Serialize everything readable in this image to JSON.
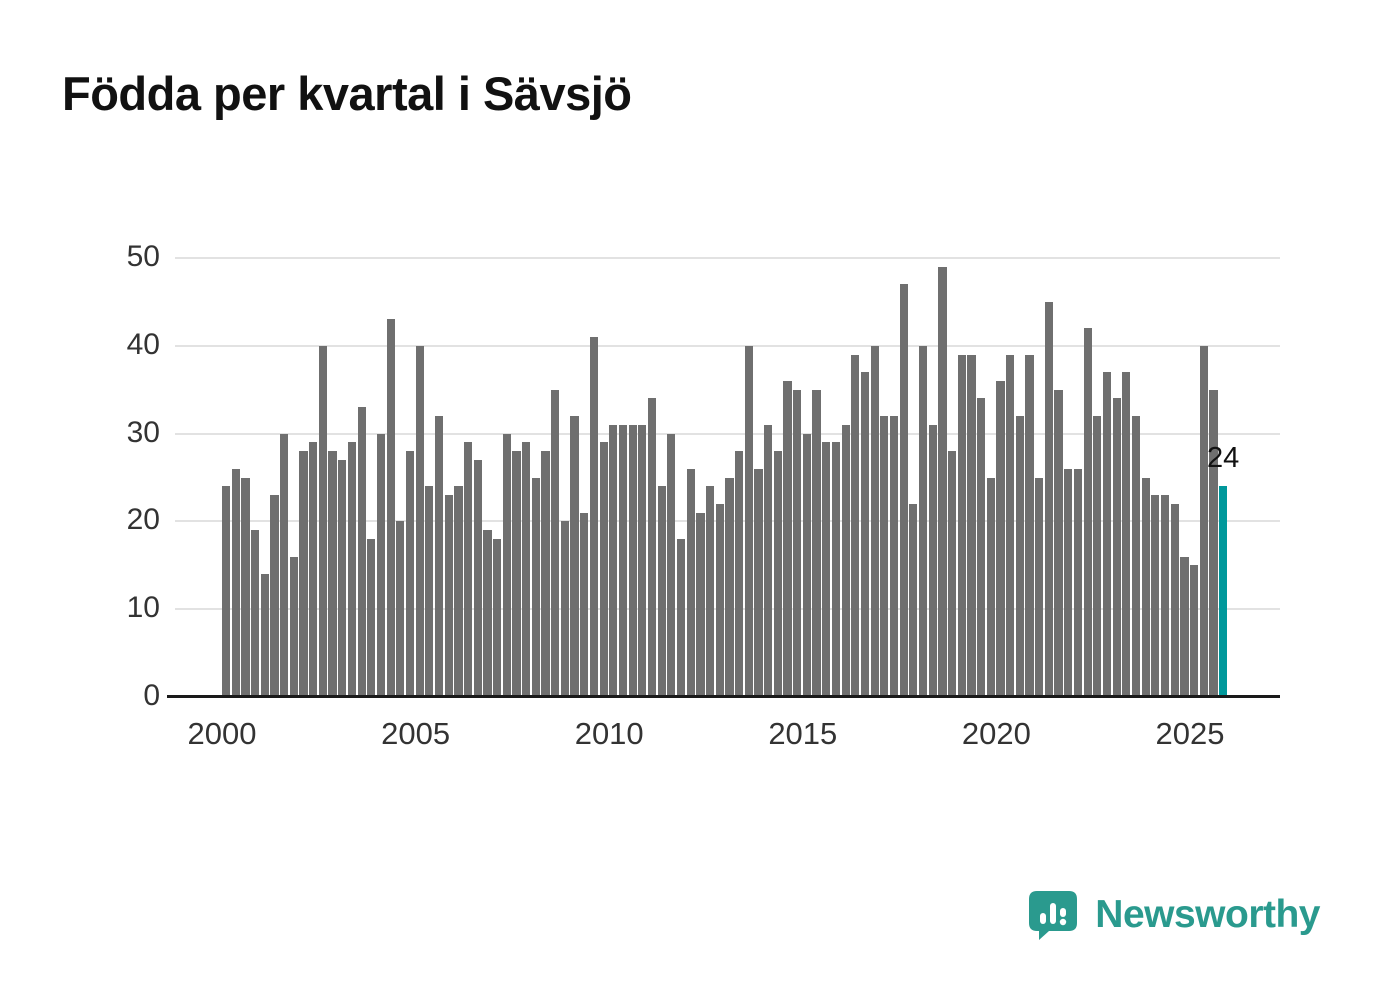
{
  "title": "Födda per kvartal i Sävsjö",
  "branding": {
    "name": "Newsworthy",
    "color": "#2a9a8e"
  },
  "colors": {
    "bar": "#6f6f6f",
    "highlight": "#00989b",
    "grid": "#e2e2e2",
    "axis": "#1a1a1a",
    "text": "#333333",
    "title": "#111111"
  },
  "chart_data": {
    "type": "bar",
    "title": "Födda per kvartal i Sävsjö",
    "xlabel": "",
    "ylabel": "",
    "x_unit": "quarter",
    "start_year": 2000,
    "x_tick_labels": [
      "2000",
      "2005",
      "2010",
      "2015",
      "2020",
      "2025"
    ],
    "y_ticks": [
      0,
      10,
      20,
      30,
      40,
      50
    ],
    "ylim": [
      0,
      50
    ],
    "grid": true,
    "quarters": [
      24,
      26,
      25,
      19,
      14,
      23,
      30,
      16,
      28,
      29,
      40,
      28,
      27,
      29,
      33,
      18,
      30,
      43,
      20,
      28,
      40,
      24,
      32,
      23,
      24,
      29,
      27,
      19,
      18,
      30,
      28,
      29,
      25,
      28,
      35,
      20,
      32,
      21,
      41,
      29,
      31,
      31,
      31,
      31,
      34,
      24,
      30,
      18,
      26,
      21,
      24,
      22,
      25,
      28,
      40,
      26,
      31,
      28,
      36,
      35,
      30,
      35,
      29,
      29,
      31,
      39,
      37,
      40,
      32,
      32,
      47,
      22,
      40,
      31,
      49,
      28,
      39,
      39,
      34,
      25,
      36,
      39,
      32,
      39,
      25,
      45,
      35,
      26,
      26,
      42,
      32,
      37,
      34,
      37,
      32,
      25,
      23,
      23,
      22,
      16,
      15,
      40,
      35,
      24
    ],
    "highlight_last": true,
    "last_value_label": "24"
  }
}
